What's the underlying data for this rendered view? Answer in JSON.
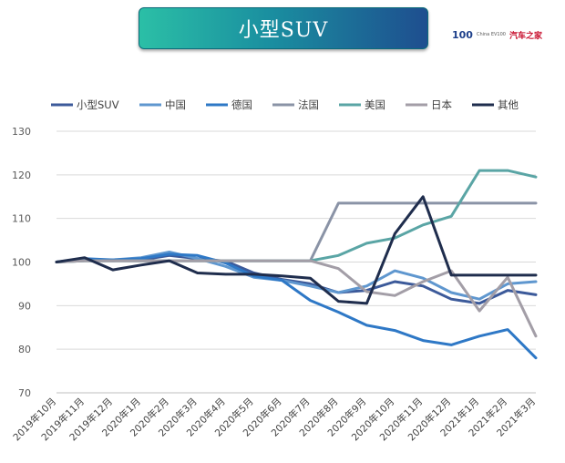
{
  "header": {
    "title": "小型SUV",
    "logo_number": "100",
    "logo_small": "China EV100",
    "logo_auto": "汽车之家",
    "logo_auto_sub": "看车 买车 用车"
  },
  "chart_data": {
    "type": "line",
    "title": "",
    "xlabel": "",
    "ylabel": "",
    "ylim": [
      70,
      130
    ],
    "yticks": [
      70,
      80,
      90,
      100,
      110,
      120,
      130
    ],
    "grid": true,
    "legend_position": "top",
    "categories": [
      "2019年10月",
      "2019年11月",
      "2019年12月",
      "2020年1月",
      "2020年2月",
      "2020年3月",
      "2020年4月",
      "2020年5月",
      "2020年6月",
      "2020年7月",
      "2020年8月",
      "2020年9月",
      "2020年10月",
      "2020年11月",
      "2020年12月",
      "2021年1月",
      "2021年2月",
      "2021年3月"
    ],
    "series": [
      {
        "name": "小型SUV",
        "color": "#3c5a9a",
        "values": [
          100,
          100.5,
          100.3,
          100.5,
          101.5,
          100.8,
          100.2,
          97.5,
          96,
          95,
          93,
          93.5,
          95.5,
          94.5,
          91.5,
          90.5,
          93.5,
          92.5
        ]
      },
      {
        "name": "中国",
        "color": "#5f97cf",
        "values": [
          100,
          100.5,
          100.5,
          101,
          102.3,
          100.8,
          99,
          96.5,
          95.8,
          94.5,
          93,
          94.5,
          98,
          96.3,
          93,
          91.5,
          95,
          95.5
        ]
      },
      {
        "name": "德国",
        "color": "#2e78c6",
        "values": [
          100,
          100.8,
          100.5,
          100.8,
          101.8,
          101.5,
          99.8,
          96.8,
          95.8,
          91.2,
          88.5,
          85.5,
          84.3,
          82,
          81,
          83,
          84.5,
          78
        ]
      },
      {
        "name": "法国",
        "color": "#8a93a6",
        "values": [
          100,
          100.3,
          100.3,
          100.3,
          100.3,
          100.3,
          100.3,
          100.3,
          100.3,
          100.3,
          113.5,
          113.5,
          113.5,
          113.5,
          113.5,
          113.5,
          113.5,
          113.5
        ]
      },
      {
        "name": "美国",
        "color": "#5aa5a5",
        "values": [
          100,
          100.3,
          100.3,
          100.3,
          100.3,
          100.3,
          100.3,
          100.3,
          100.3,
          100.3,
          101.5,
          104.3,
          105.5,
          108.5,
          110.5,
          121,
          121,
          119.5
        ]
      },
      {
        "name": "日本",
        "color": "#a39ea7",
        "values": [
          100,
          100.3,
          100.3,
          100.3,
          100.3,
          100.3,
          100.3,
          100.3,
          100.3,
          100.3,
          98.5,
          93.2,
          92.3,
          95.5,
          98,
          88.8,
          96.5,
          83
        ]
      },
      {
        "name": "其他",
        "color": "#1f2d4d",
        "values": [
          100,
          101,
          98.2,
          99.3,
          100.3,
          97.5,
          97.2,
          97.2,
          96.8,
          96.3,
          91,
          90.5,
          106.5,
          115,
          97,
          97,
          97,
          97
        ]
      }
    ]
  }
}
